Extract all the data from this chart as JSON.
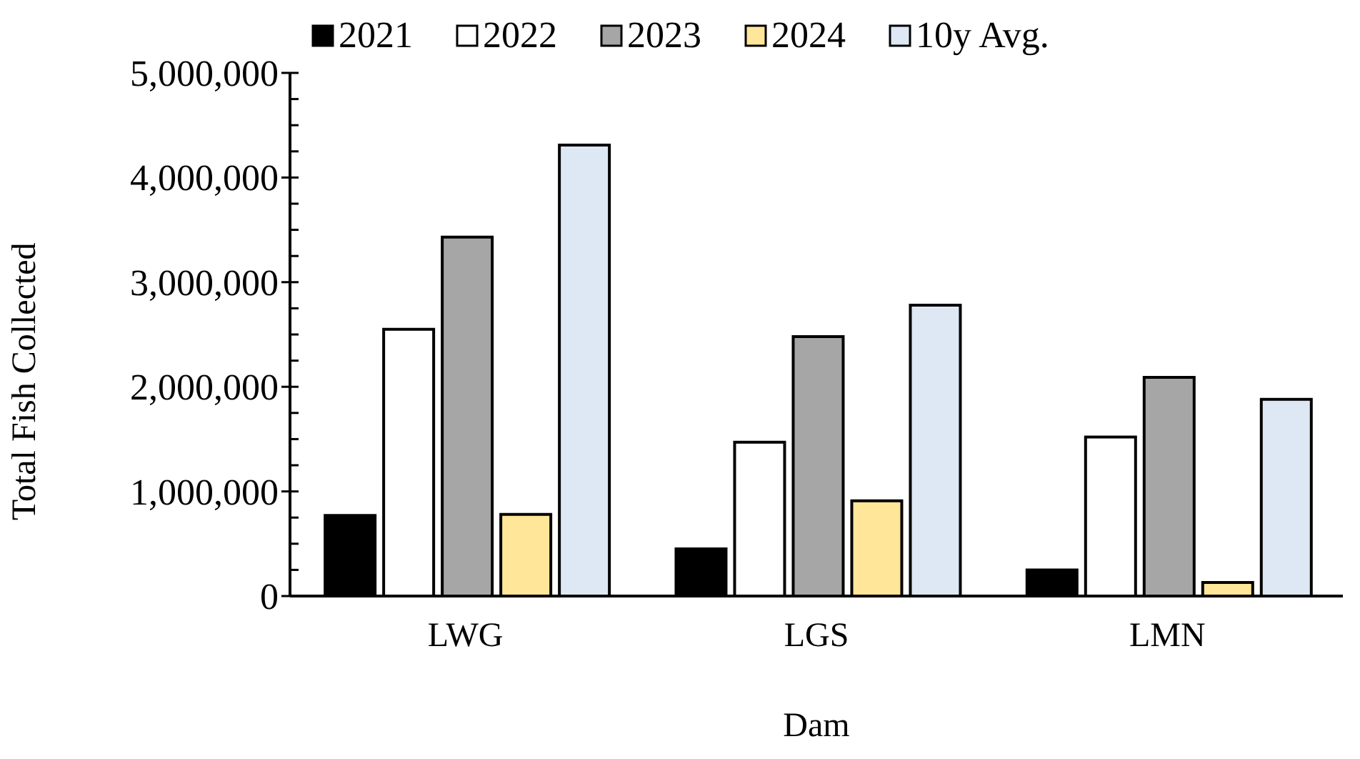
{
  "chart_data": {
    "type": "bar",
    "xlabel": "Dam",
    "ylabel": "Total Fish Collected",
    "categories": [
      "LWG",
      "LGS",
      "LMN"
    ],
    "series": [
      {
        "name": "2021",
        "color": "#000000",
        "values": [
          770000,
          450000,
          250000
        ]
      },
      {
        "name": "2022",
        "color": "#ffffff",
        "values": [
          2550000,
          1470000,
          1520000
        ]
      },
      {
        "name": "2023",
        "color": "#a6a6a6",
        "values": [
          3430000,
          2480000,
          2090000
        ]
      },
      {
        "name": "2024",
        "color": "#ffe699",
        "values": [
          780000,
          910000,
          130000
        ]
      },
      {
        "name": "10y Avg.",
        "color": "#dee8f4",
        "values": [
          4310000,
          2780000,
          1880000
        ]
      }
    ],
    "ylim": [
      0,
      5000000
    ],
    "yticks": [
      0,
      {
        "value": 250000,
        "label": null
      },
      {
        "value": 500000,
        "label": null
      },
      {
        "value": 750000,
        "label": null
      },
      {
        "value": 1000000,
        "label": "1,000,000"
      },
      {
        "value": 1250000,
        "label": null
      },
      {
        "value": 1500000,
        "label": null
      },
      {
        "value": 1750000,
        "label": null
      },
      {
        "value": 2000000,
        "label": "2,000,000"
      },
      {
        "value": 2250000,
        "label": null
      },
      {
        "value": 2500000,
        "label": null
      },
      {
        "value": 2750000,
        "label": null
      },
      {
        "value": 3000000,
        "label": "3,000,000"
      },
      {
        "value": 3250000,
        "label": null
      },
      {
        "value": 3500000,
        "label": null
      },
      {
        "value": 3750000,
        "label": null
      },
      {
        "value": 4000000,
        "label": "4,000,000"
      },
      {
        "value": 4250000,
        "label": null
      },
      {
        "value": 4500000,
        "label": null
      },
      {
        "value": 4750000,
        "label": null
      },
      {
        "value": 5000000,
        "label": "5,000,000"
      }
    ],
    "grid": false,
    "legend": "top"
  }
}
